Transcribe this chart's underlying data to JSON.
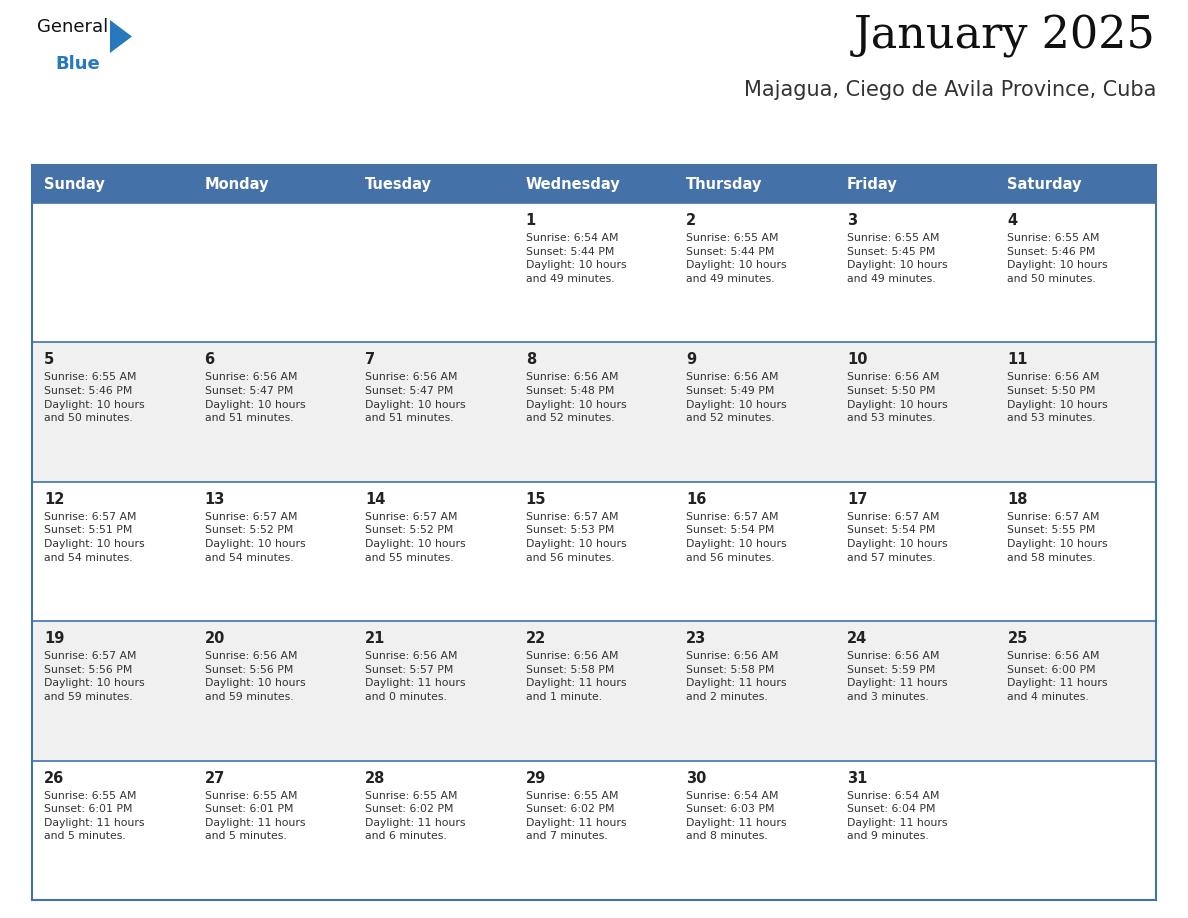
{
  "title": "January 2025",
  "subtitle": "Majagua, Ciego de Avila Province, Cuba",
  "header_bg": "#4472a8",
  "header_text": "#ffffff",
  "row_bg_white": "#ffffff",
  "row_bg_gray": "#f0f0f0",
  "cell_border_color": "#4472a8",
  "day_number_color": "#222222",
  "info_text_color": "#333333",
  "weekdays": [
    "Sunday",
    "Monday",
    "Tuesday",
    "Wednesday",
    "Thursday",
    "Friday",
    "Saturday"
  ],
  "logo_general_color": "#111111",
  "logo_blue_color": "#2878be",
  "calendar_data": [
    [
      {
        "day": "",
        "info": ""
      },
      {
        "day": "",
        "info": ""
      },
      {
        "day": "",
        "info": ""
      },
      {
        "day": "1",
        "info": "Sunrise: 6:54 AM\nSunset: 5:44 PM\nDaylight: 10 hours\nand 49 minutes."
      },
      {
        "day": "2",
        "info": "Sunrise: 6:55 AM\nSunset: 5:44 PM\nDaylight: 10 hours\nand 49 minutes."
      },
      {
        "day": "3",
        "info": "Sunrise: 6:55 AM\nSunset: 5:45 PM\nDaylight: 10 hours\nand 49 minutes."
      },
      {
        "day": "4",
        "info": "Sunrise: 6:55 AM\nSunset: 5:46 PM\nDaylight: 10 hours\nand 50 minutes."
      }
    ],
    [
      {
        "day": "5",
        "info": "Sunrise: 6:55 AM\nSunset: 5:46 PM\nDaylight: 10 hours\nand 50 minutes."
      },
      {
        "day": "6",
        "info": "Sunrise: 6:56 AM\nSunset: 5:47 PM\nDaylight: 10 hours\nand 51 minutes."
      },
      {
        "day": "7",
        "info": "Sunrise: 6:56 AM\nSunset: 5:47 PM\nDaylight: 10 hours\nand 51 minutes."
      },
      {
        "day": "8",
        "info": "Sunrise: 6:56 AM\nSunset: 5:48 PM\nDaylight: 10 hours\nand 52 minutes."
      },
      {
        "day": "9",
        "info": "Sunrise: 6:56 AM\nSunset: 5:49 PM\nDaylight: 10 hours\nand 52 minutes."
      },
      {
        "day": "10",
        "info": "Sunrise: 6:56 AM\nSunset: 5:50 PM\nDaylight: 10 hours\nand 53 minutes."
      },
      {
        "day": "11",
        "info": "Sunrise: 6:56 AM\nSunset: 5:50 PM\nDaylight: 10 hours\nand 53 minutes."
      }
    ],
    [
      {
        "day": "12",
        "info": "Sunrise: 6:57 AM\nSunset: 5:51 PM\nDaylight: 10 hours\nand 54 minutes."
      },
      {
        "day": "13",
        "info": "Sunrise: 6:57 AM\nSunset: 5:52 PM\nDaylight: 10 hours\nand 54 minutes."
      },
      {
        "day": "14",
        "info": "Sunrise: 6:57 AM\nSunset: 5:52 PM\nDaylight: 10 hours\nand 55 minutes."
      },
      {
        "day": "15",
        "info": "Sunrise: 6:57 AM\nSunset: 5:53 PM\nDaylight: 10 hours\nand 56 minutes."
      },
      {
        "day": "16",
        "info": "Sunrise: 6:57 AM\nSunset: 5:54 PM\nDaylight: 10 hours\nand 56 minutes."
      },
      {
        "day": "17",
        "info": "Sunrise: 6:57 AM\nSunset: 5:54 PM\nDaylight: 10 hours\nand 57 minutes."
      },
      {
        "day": "18",
        "info": "Sunrise: 6:57 AM\nSunset: 5:55 PM\nDaylight: 10 hours\nand 58 minutes."
      }
    ],
    [
      {
        "day": "19",
        "info": "Sunrise: 6:57 AM\nSunset: 5:56 PM\nDaylight: 10 hours\nand 59 minutes."
      },
      {
        "day": "20",
        "info": "Sunrise: 6:56 AM\nSunset: 5:56 PM\nDaylight: 10 hours\nand 59 minutes."
      },
      {
        "day": "21",
        "info": "Sunrise: 6:56 AM\nSunset: 5:57 PM\nDaylight: 11 hours\nand 0 minutes."
      },
      {
        "day": "22",
        "info": "Sunrise: 6:56 AM\nSunset: 5:58 PM\nDaylight: 11 hours\nand 1 minute."
      },
      {
        "day": "23",
        "info": "Sunrise: 6:56 AM\nSunset: 5:58 PM\nDaylight: 11 hours\nand 2 minutes."
      },
      {
        "day": "24",
        "info": "Sunrise: 6:56 AM\nSunset: 5:59 PM\nDaylight: 11 hours\nand 3 minutes."
      },
      {
        "day": "25",
        "info": "Sunrise: 6:56 AM\nSunset: 6:00 PM\nDaylight: 11 hours\nand 4 minutes."
      }
    ],
    [
      {
        "day": "26",
        "info": "Sunrise: 6:55 AM\nSunset: 6:01 PM\nDaylight: 11 hours\nand 5 minutes."
      },
      {
        "day": "27",
        "info": "Sunrise: 6:55 AM\nSunset: 6:01 PM\nDaylight: 11 hours\nand 5 minutes."
      },
      {
        "day": "28",
        "info": "Sunrise: 6:55 AM\nSunset: 6:02 PM\nDaylight: 11 hours\nand 6 minutes."
      },
      {
        "day": "29",
        "info": "Sunrise: 6:55 AM\nSunset: 6:02 PM\nDaylight: 11 hours\nand 7 minutes."
      },
      {
        "day": "30",
        "info": "Sunrise: 6:54 AM\nSunset: 6:03 PM\nDaylight: 11 hours\nand 8 minutes."
      },
      {
        "day": "31",
        "info": "Sunrise: 6:54 AM\nSunset: 6:04 PM\nDaylight: 11 hours\nand 9 minutes."
      },
      {
        "day": "",
        "info": ""
      }
    ]
  ]
}
